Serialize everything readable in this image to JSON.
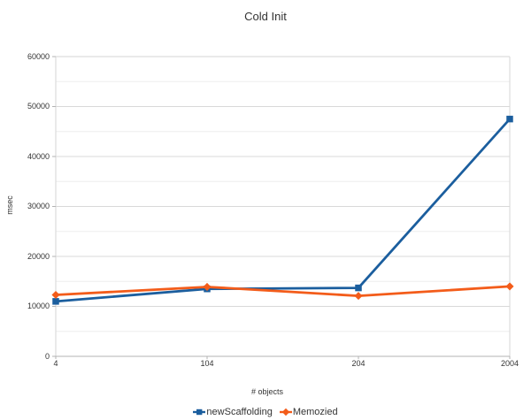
{
  "chart_data": {
    "type": "line",
    "title": "Cold Init",
    "xlabel": "# objects",
    "ylabel": "msec",
    "categories": [
      "4",
      "104",
      "204",
      "2004"
    ],
    "series": [
      {
        "name": "newScaffolding",
        "color": "#1b5e9e",
        "marker": "square",
        "values": [
          11000,
          13500,
          13700,
          47500
        ]
      },
      {
        "name": "Memozied",
        "color": "#f35c1a",
        "marker": "diamond",
        "values": [
          12300,
          13900,
          12100,
          14000
        ]
      }
    ],
    "ylim": [
      0,
      60000
    ],
    "yticks": [
      0,
      10000,
      20000,
      30000,
      40000,
      50000,
      60000
    ],
    "yminor_step": 5000,
    "grid": "horizontal-only",
    "legend_position": "bottom-center"
  }
}
